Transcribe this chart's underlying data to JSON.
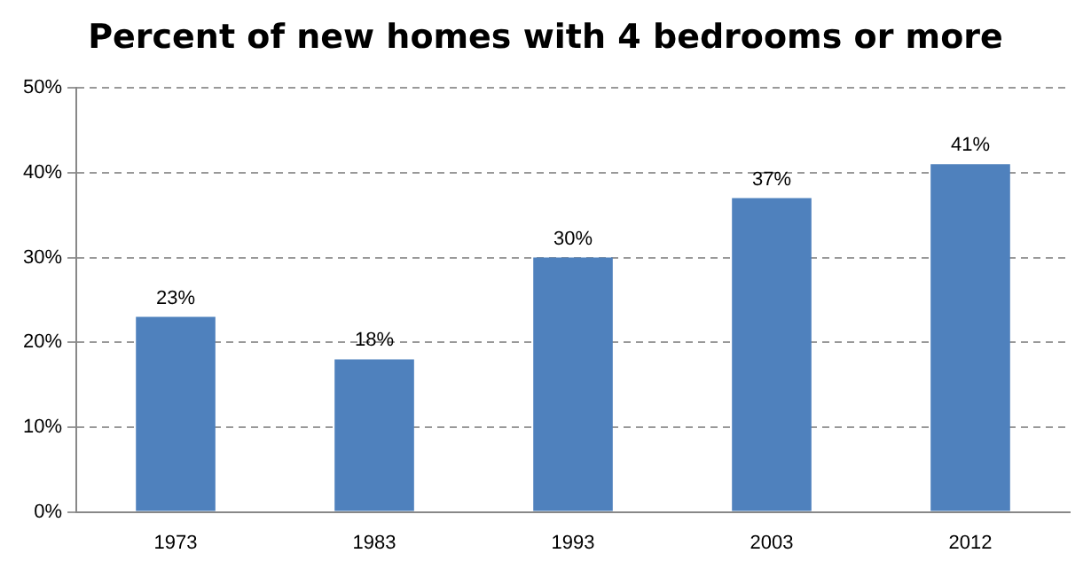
{
  "chart_data": {
    "type": "bar",
    "title": "Percent of new homes with 4 bedrooms or more",
    "categories": [
      "1973",
      "1983",
      "1993",
      "2003",
      "2012"
    ],
    "values": [
      23,
      18,
      30,
      37,
      41
    ],
    "value_labels": [
      "23%",
      "18%",
      "30%",
      "37%",
      "41%"
    ],
    "color": "#4f81bd",
    "ylim": [
      0,
      50
    ],
    "yticks": [
      {
        "value": 0,
        "label": "0%"
      },
      {
        "value": 10,
        "label": "10%"
      },
      {
        "value": 20,
        "label": "20%"
      },
      {
        "value": 30,
        "label": "30%"
      },
      {
        "value": 40,
        "label": "40%"
      },
      {
        "value": 50,
        "label": "50%"
      }
    ],
    "grid": "y",
    "legend": false
  }
}
